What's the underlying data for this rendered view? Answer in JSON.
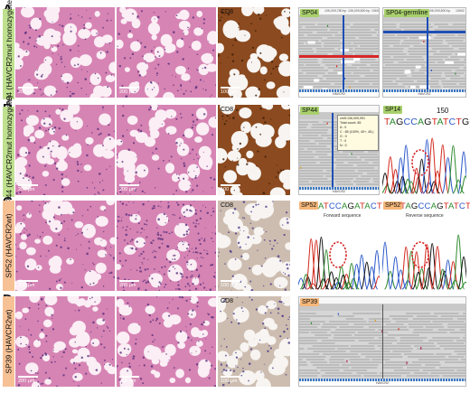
{
  "panels": [
    {
      "letter": "A",
      "side_label": "SP04 (HAVCR2mut homozygote)",
      "he_scales": [
        "200 μm",
        "200 μm"
      ],
      "ihc_label": "CD8",
      "ihc_scale": "100 μm",
      "igv": [
        {
          "tag": "SP04",
          "tag_color": "green",
          "coords": [
            "106,009,780 bp",
            "106,009,800 bp",
            "10602"
          ],
          "gene": "HAVCR2"
        },
        {
          "tag": "SP04-germline",
          "tag_color": "green",
          "coords": [
            "106,009,800 bp",
            "10602"
          ],
          "gene": "HAVCR2"
        }
      ]
    },
    {
      "letter": "B",
      "side_label": "SP44 (HAVCR2mut homozygote)",
      "he_scales": [
        "200 μm",
        "200 μm"
      ],
      "ihc_label": "CD8",
      "ihc_scale": "100 μm",
      "igv": [
        {
          "tag": "SP44",
          "tag_color": "green",
          "gene": "HAVCR2",
          "popup": [
            "chr5:106,009,991",
            "Total count: 85",
            "A : 0",
            "C : 85 (100%, 40+, 45-)",
            "G : 0",
            "T : 0",
            "N : 0"
          ]
        }
      ],
      "seq": {
        "tag": "SP14",
        "tag_color": "green",
        "position": "150",
        "bases": "TAGCCAGTATCTGGA"
      }
    },
    {
      "letter": "C",
      "side_label": "SP52 (HAVCR2wt)",
      "he_scales": [
        "200 μm",
        "200 μm"
      ],
      "ihc_label": "CD8",
      "ihc_scale": "100 μm",
      "seqs": [
        {
          "tag": "SP52",
          "tag_color": "orange",
          "bases": "ATCCAGATACTGGCT",
          "caption": "Forward sequence"
        },
        {
          "tag": "SP52",
          "tag_color": "orange",
          "bases": "TAGCCAGTATCTGGA",
          "caption": "Reverse sequence"
        }
      ]
    },
    {
      "letter": "D",
      "side_label": "SP39 (HAVCR2wt)",
      "he_scales": [
        "200 μm",
        "200 μm"
      ],
      "ihc_label": "CD8",
      "ihc_scale": "100 μm",
      "igv": [
        {
          "tag": "SP39",
          "tag_color": "orange",
          "gene": "HAVCR2"
        }
      ]
    }
  ],
  "colors": {
    "he_bg": "#f3d4e4",
    "he_stroma": "#d684b4",
    "ihc_bg": "#efe6df",
    "ihc_brown": "#8b4a1f",
    "base_A": "#2e8b2e",
    "base_C": "#2a57c9",
    "base_G": "#111111",
    "base_T": "#d2291d",
    "tag_green": "#a8d06c",
    "tag_orange": "#f5b77a",
    "mutation_red": "#d62728",
    "reference_blue": "#1f4fb4"
  }
}
